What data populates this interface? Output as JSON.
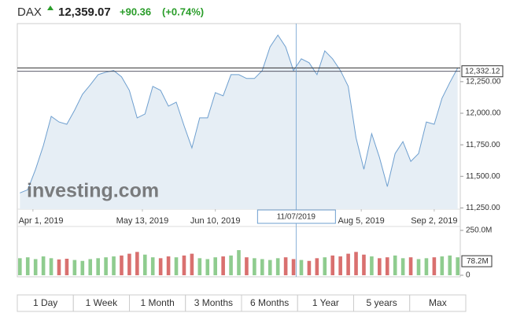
{
  "header": {
    "symbol": "DAX",
    "price": "12,359.07",
    "change": "+90.36",
    "change_pct": "(+0.74%)"
  },
  "chart_data": [
    {
      "type": "line",
      "watermark": "investing.com",
      "x": [
        "2019-03-27",
        "2019-03-30",
        "2019-04-02",
        "2019-04-05",
        "2019-04-08",
        "2019-04-11",
        "2019-04-14",
        "2019-04-17",
        "2019-04-20",
        "2019-04-23",
        "2019-04-26",
        "2019-04-29",
        "2019-05-02",
        "2019-05-05",
        "2019-05-08",
        "2019-05-11",
        "2019-05-14",
        "2019-05-17",
        "2019-05-20",
        "2019-05-23",
        "2019-05-26",
        "2019-05-29",
        "2019-06-01",
        "2019-06-04",
        "2019-06-07",
        "2019-06-10",
        "2019-06-13",
        "2019-06-16",
        "2019-06-19",
        "2019-06-22",
        "2019-06-25",
        "2019-06-28",
        "2019-07-01",
        "2019-07-04",
        "2019-07-07",
        "2019-07-10",
        "2019-07-13",
        "2019-07-16",
        "2019-07-19",
        "2019-07-22",
        "2019-07-25",
        "2019-07-28",
        "2019-07-31",
        "2019-08-03",
        "2019-08-06",
        "2019-08-09",
        "2019-08-12",
        "2019-08-15",
        "2019-08-18",
        "2019-08-21",
        "2019-08-24",
        "2019-08-27",
        "2019-08-30",
        "2019-09-02",
        "2019-09-05",
        "2019-09-08",
        "2019-09-11"
      ],
      "series": [
        {
          "name": "DAX",
          "color": "#6e9fcf",
          "fill": "#e6eef5",
          "values": [
            11369,
            11394,
            11556,
            11744,
            11975,
            11931,
            11913,
            12025,
            12150,
            12225,
            12306,
            12325,
            12338,
            12288,
            12181,
            11963,
            11994,
            12213,
            12181,
            12056,
            12088,
            11900,
            11725,
            11963,
            11963,
            12163,
            12138,
            12306,
            12306,
            12275,
            12275,
            12338,
            12525,
            12619,
            12525,
            12338,
            12431,
            12400,
            12306,
            12494,
            12431,
            12338,
            12213,
            11806,
            11556,
            11838,
            11650,
            11419,
            11681,
            11775,
            11619,
            11681,
            11931,
            11913,
            12119,
            12244,
            12359
          ]
        }
      ],
      "last_price": 12359.07,
      "crosshair": {
        "x": "2019-07-11",
        "x_label": "11/07/2019",
        "value": 12332.12,
        "value_label": "12,332.12"
      },
      "xlim": [
        "2019-03-26",
        "2019-09-12"
      ],
      "xticks": [
        {
          "value": "2019-04-01",
          "label": "Apr 1, 2019"
        },
        {
          "value": "2019-05-13",
          "label": "May 13, 2019"
        },
        {
          "value": "2019-06-10",
          "label": "Jun 10, 2019"
        },
        {
          "value": "2019-08-05",
          "label": "Aug 5, 2019"
        },
        {
          "value": "2019-09-02",
          "label": "Sep 2, 2019"
        }
      ],
      "ylim": [
        11240,
        12710
      ],
      "yticks": [
        {
          "value": 11250,
          "label": "11,250.00"
        },
        {
          "value": 11500,
          "label": "11,500.00"
        },
        {
          "value": 11750,
          "label": "11,750.00"
        },
        {
          "value": 12000,
          "label": "12,000.00"
        },
        {
          "value": 12250,
          "label": "12,250.00"
        }
      ]
    },
    {
      "type": "bar",
      "up_color": "#8fcc8f",
      "down_color": "#d9706f",
      "values": [
        95,
        100,
        90,
        105,
        95,
        88,
        92,
        85,
        80,
        90,
        95,
        100,
        105,
        110,
        120,
        130,
        115,
        100,
        95,
        105,
        100,
        110,
        120,
        95,
        90,
        100,
        105,
        110,
        140,
        100,
        95,
        90,
        85,
        95,
        100,
        90,
        85,
        80,
        95,
        100,
        110,
        105,
        120,
        130,
        115,
        105,
        95,
        100,
        110,
        95,
        100,
        90,
        95,
        100,
        105,
        110,
        100
      ],
      "current": 78.2,
      "current_label": "78.2M",
      "ylim": [
        0,
        263
      ],
      "yticks": [
        0,
        {
          "value": 250,
          "label": "250.0M"
        }
      ]
    }
  ],
  "buttons": [
    "1 Day",
    "1 Week",
    "1 Month",
    "3 Months",
    "6 Months",
    "1 Year",
    "5 years",
    "Max"
  ]
}
